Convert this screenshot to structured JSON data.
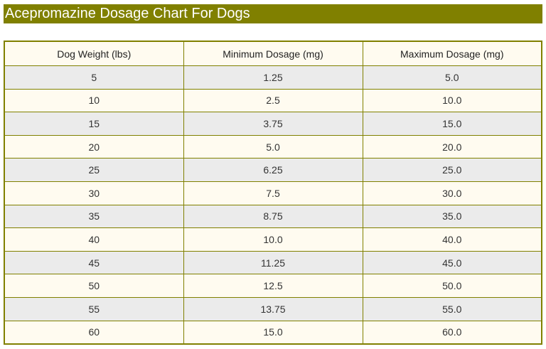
{
  "header": {
    "title": "Acepromazine Dosage Chart For Dogs"
  },
  "table": {
    "columns": [
      "Dog Weight (lbs)",
      "Minimum Dosage (mg)",
      "Maximum Dosage (mg)"
    ],
    "rows": [
      [
        "5",
        "1.25",
        "5.0"
      ],
      [
        "10",
        "2.5",
        "10.0"
      ],
      [
        "15",
        "3.75",
        "15.0"
      ],
      [
        "20",
        "5.0",
        "20.0"
      ],
      [
        "25",
        "6.25",
        "25.0"
      ],
      [
        "30",
        "7.5",
        "30.0"
      ],
      [
        "35",
        "8.75",
        "35.0"
      ],
      [
        "40",
        "10.0",
        "40.0"
      ],
      [
        "45",
        "11.25",
        "45.0"
      ],
      [
        "50",
        "12.5",
        "50.0"
      ],
      [
        "55",
        "13.75",
        "55.0"
      ],
      [
        "60",
        "15.0",
        "60.0"
      ]
    ]
  }
}
